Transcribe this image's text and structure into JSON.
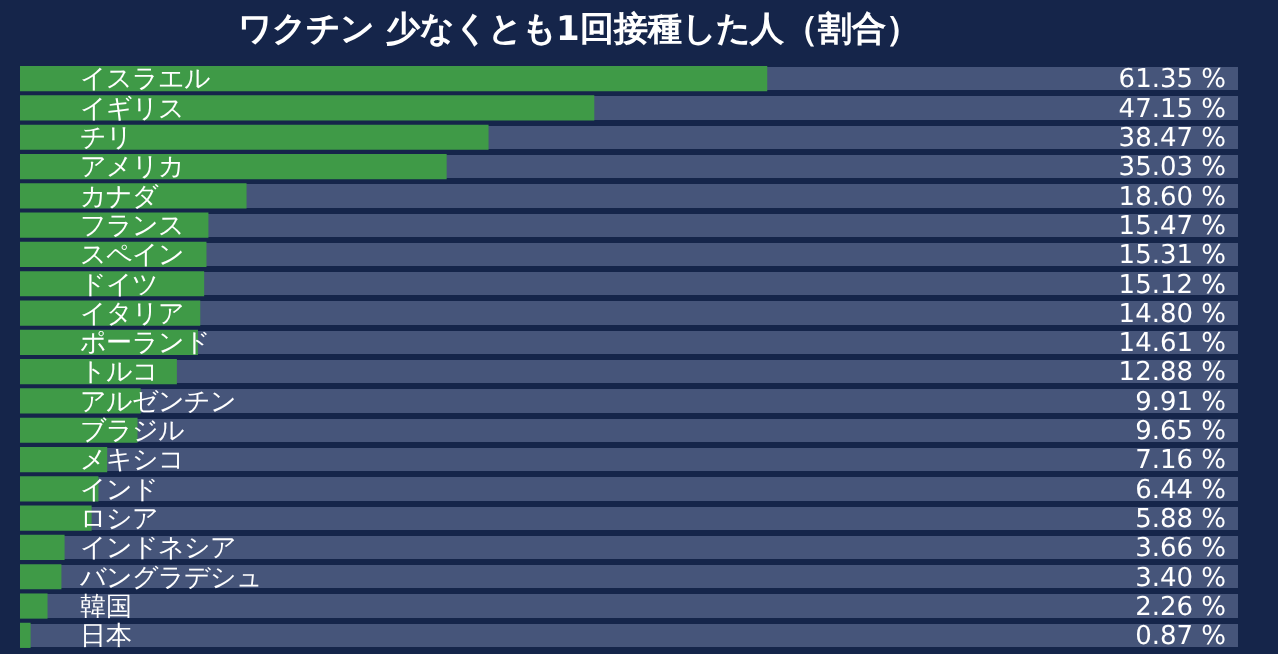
{
  "chart_data": {
    "type": "bar",
    "orientation": "horizontal",
    "title": "ワクチン 少なくとも1回接種した人（割合）",
    "categories": [
      "イスラエル",
      "イギリス",
      "チリ",
      "アメリカ",
      "カナダ",
      "フランス",
      "スペイン",
      "ドイツ",
      "イタリア",
      "ポーランド",
      "トルコ",
      "アルゼンチン",
      "ブラジル",
      "メキシコ",
      "インド",
      "ロシア",
      "インドネシア",
      "バングラデシュ",
      "韓国",
      "日本"
    ],
    "values": [
      61.35,
      47.15,
      38.47,
      35.03,
      18.6,
      15.47,
      15.31,
      15.12,
      14.8,
      14.61,
      12.88,
      9.91,
      9.65,
      7.16,
      6.44,
      5.88,
      3.66,
      3.4,
      2.26,
      0.87
    ],
    "value_labels": [
      "61.35 %",
      "47.15 %",
      "38.47 %",
      "35.03 %",
      "18.60 %",
      "15.47 %",
      "15.31 %",
      "15.12 %",
      "14.80 %",
      "14.61 %",
      "12.88 %",
      "9.91 %",
      "9.65 %",
      "7.16 %",
      "6.44 %",
      "5.88 %",
      "3.66 %",
      "3.40 %",
      "2.26 %",
      "0.87 %"
    ],
    "color": "#3f9a47",
    "xlim": [
      0,
      100
    ],
    "tick_labels": "y",
    "grid": "y",
    "legend": false
  }
}
